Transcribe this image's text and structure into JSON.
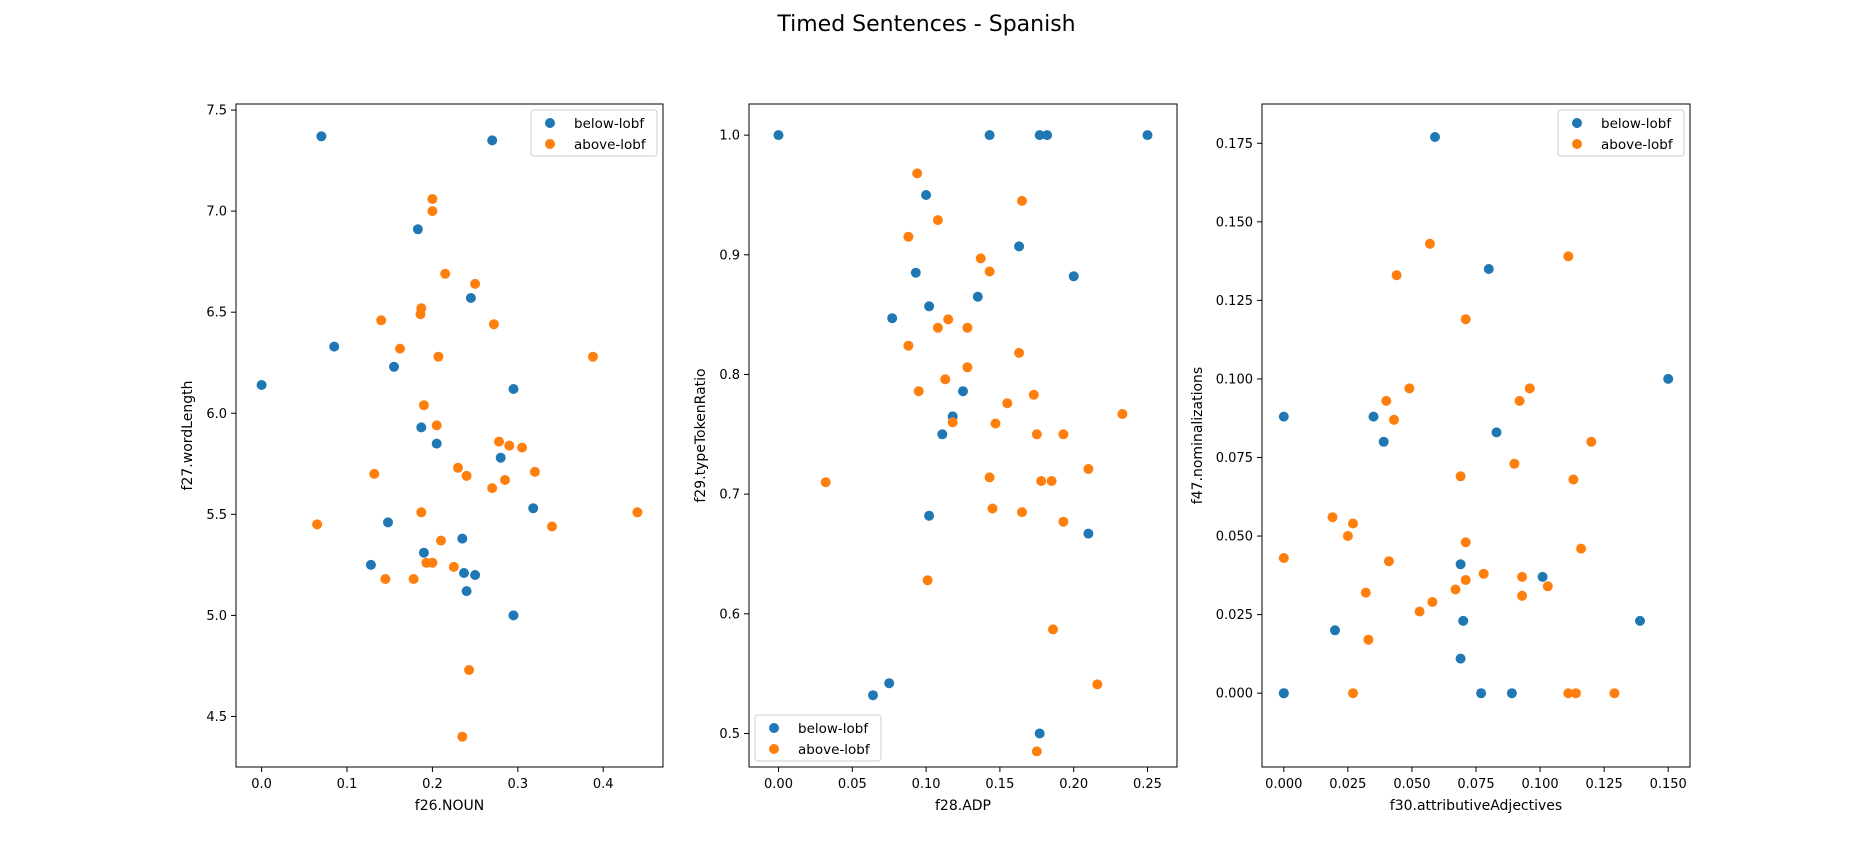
{
  "figure": {
    "title": "Timed Sentences - Spanish"
  },
  "colors": {
    "below": "#1f77b4",
    "above": "#ff7f0e"
  },
  "chart_data": [
    {
      "type": "scatter",
      "xlabel": "f26.NOUN",
      "ylabel": "f27.wordLength",
      "xlim": [
        -0.03,
        0.47
      ],
      "ylim": [
        4.25,
        7.53
      ],
      "xticks": [
        0.0,
        0.1,
        0.2,
        0.3,
        0.4
      ],
      "xtick_labels": [
        "0.0",
        "0.1",
        "0.2",
        "0.3",
        "0.4"
      ],
      "yticks": [
        4.5,
        5.0,
        5.5,
        6.0,
        6.5,
        7.0,
        7.5
      ],
      "ytick_labels": [
        "4.5",
        "5.0",
        "5.5",
        "6.0",
        "6.5",
        "7.0",
        "7.5"
      ],
      "legend": "top-right",
      "series": [
        {
          "name": "below-lobf",
          "color": "#1f77b4",
          "points": [
            [
              0.07,
              7.37
            ],
            [
              0.27,
              7.35
            ],
            [
              0.183,
              6.91
            ],
            [
              0.245,
              6.57
            ],
            [
              0.085,
              6.33
            ],
            [
              0.155,
              6.23
            ],
            [
              0.0,
              6.14
            ],
            [
              0.295,
              6.12
            ],
            [
              0.187,
              5.93
            ],
            [
              0.205,
              5.85
            ],
            [
              0.28,
              5.78
            ],
            [
              0.318,
              5.53
            ],
            [
              0.148,
              5.46
            ],
            [
              0.235,
              5.38
            ],
            [
              0.19,
              5.31
            ],
            [
              0.128,
              5.25
            ],
            [
              0.237,
              5.21
            ],
            [
              0.25,
              5.2
            ],
            [
              0.24,
              5.12
            ],
            [
              0.295,
              5.0
            ]
          ]
        },
        {
          "name": "above-lobf",
          "color": "#ff7f0e",
          "points": [
            [
              0.2,
              7.06
            ],
            [
              0.2,
              7.0
            ],
            [
              0.215,
              6.69
            ],
            [
              0.25,
              6.64
            ],
            [
              0.187,
              6.52
            ],
            [
              0.186,
              6.49
            ],
            [
              0.14,
              6.46
            ],
            [
              0.272,
              6.44
            ],
            [
              0.162,
              6.32
            ],
            [
              0.207,
              6.28
            ],
            [
              0.388,
              6.28
            ],
            [
              0.19,
              6.04
            ],
            [
              0.205,
              5.94
            ],
            [
              0.278,
              5.86
            ],
            [
              0.29,
              5.84
            ],
            [
              0.305,
              5.83
            ],
            [
              0.23,
              5.73
            ],
            [
              0.132,
              5.7
            ],
            [
              0.32,
              5.71
            ],
            [
              0.24,
              5.69
            ],
            [
              0.285,
              5.67
            ],
            [
              0.27,
              5.63
            ],
            [
              0.187,
              5.51
            ],
            [
              0.44,
              5.51
            ],
            [
              0.065,
              5.45
            ],
            [
              0.34,
              5.44
            ],
            [
              0.21,
              5.37
            ],
            [
              0.193,
              5.26
            ],
            [
              0.2,
              5.26
            ],
            [
              0.225,
              5.24
            ],
            [
              0.145,
              5.18
            ],
            [
              0.178,
              5.18
            ],
            [
              0.243,
              4.73
            ],
            [
              0.235,
              4.4
            ]
          ]
        }
      ]
    },
    {
      "type": "scatter",
      "xlabel": "f28.ADP",
      "ylabel": "f29.typeTokenRatio",
      "xlim": [
        -0.02,
        0.27
      ],
      "ylim": [
        0.472,
        1.026
      ],
      "xticks": [
        0.0,
        0.05,
        0.1,
        0.15,
        0.2,
        0.25
      ],
      "xtick_labels": [
        "0.00",
        "0.05",
        "0.10",
        "0.15",
        "0.20",
        "0.25"
      ],
      "yticks": [
        0.5,
        0.6,
        0.7,
        0.8,
        0.9,
        1.0
      ],
      "ytick_labels": [
        "0.5",
        "0.6",
        "0.7",
        "0.8",
        "0.9",
        "1.0"
      ],
      "legend": "bottom-left",
      "series": [
        {
          "name": "below-lobf",
          "color": "#1f77b4",
          "points": [
            [
              0.0,
              1.0
            ],
            [
              0.143,
              1.0
            ],
            [
              0.177,
              1.0
            ],
            [
              0.182,
              1.0
            ],
            [
              0.25,
              1.0
            ],
            [
              0.1,
              0.95
            ],
            [
              0.163,
              0.907
            ],
            [
              0.093,
              0.885
            ],
            [
              0.2,
              0.882
            ],
            [
              0.135,
              0.865
            ],
            [
              0.102,
              0.857
            ],
            [
              0.077,
              0.847
            ],
            [
              0.125,
              0.786
            ],
            [
              0.118,
              0.765
            ],
            [
              0.111,
              0.75
            ],
            [
              0.102,
              0.682
            ],
            [
              0.21,
              0.667
            ],
            [
              0.075,
              0.542
            ],
            [
              0.064,
              0.532
            ],
            [
              0.177,
              0.5
            ]
          ]
        },
        {
          "name": "above-lobf",
          "color": "#ff7f0e",
          "points": [
            [
              0.094,
              0.968
            ],
            [
              0.165,
              0.945
            ],
            [
              0.108,
              0.929
            ],
            [
              0.088,
              0.915
            ],
            [
              0.137,
              0.897
            ],
            [
              0.143,
              0.886
            ],
            [
              0.115,
              0.846
            ],
            [
              0.108,
              0.839
            ],
            [
              0.128,
              0.839
            ],
            [
              0.088,
              0.824
            ],
            [
              0.163,
              0.818
            ],
            [
              0.128,
              0.806
            ],
            [
              0.113,
              0.796
            ],
            [
              0.095,
              0.786
            ],
            [
              0.173,
              0.783
            ],
            [
              0.155,
              0.776
            ],
            [
              0.233,
              0.767
            ],
            [
              0.118,
              0.76
            ],
            [
              0.147,
              0.759
            ],
            [
              0.175,
              0.75
            ],
            [
              0.193,
              0.75
            ],
            [
              0.21,
              0.721
            ],
            [
              0.143,
              0.714
            ],
            [
              0.178,
              0.711
            ],
            [
              0.185,
              0.711
            ],
            [
              0.032,
              0.71
            ],
            [
              0.145,
              0.688
            ],
            [
              0.165,
              0.685
            ],
            [
              0.193,
              0.677
            ],
            [
              0.101,
              0.628
            ],
            [
              0.186,
              0.587
            ],
            [
              0.216,
              0.541
            ],
            [
              0.175,
              0.485
            ]
          ]
        }
      ]
    },
    {
      "type": "scatter",
      "xlabel": "f30.attributiveAdjectives",
      "ylabel": "f47.nominalizations",
      "xlim": [
        -0.0085,
        0.1585
      ],
      "ylim": [
        -0.0235,
        0.1875
      ],
      "xticks": [
        0.0,
        0.025,
        0.05,
        0.075,
        0.1,
        0.125,
        0.15
      ],
      "xtick_labels": [
        "0.000",
        "0.025",
        "0.050",
        "0.075",
        "0.100",
        "0.125",
        "0.150"
      ],
      "yticks": [
        0.0,
        0.025,
        0.05,
        0.075,
        0.1,
        0.125,
        0.15,
        0.175
      ],
      "ytick_labels": [
        "0.000",
        "0.025",
        "0.050",
        "0.075",
        "0.100",
        "0.125",
        "0.150",
        "0.175"
      ],
      "legend": "top-right",
      "series": [
        {
          "name": "below-lobf",
          "color": "#1f77b4",
          "points": [
            [
              0.059,
              0.177
            ],
            [
              0.08,
              0.135
            ],
            [
              0.15,
              0.1
            ],
            [
              0.0,
              0.088
            ],
            [
              0.035,
              0.088
            ],
            [
              0.083,
              0.083
            ],
            [
              0.039,
              0.08
            ],
            [
              0.069,
              0.041
            ],
            [
              0.101,
              0.037
            ],
            [
              0.07,
              0.023
            ],
            [
              0.139,
              0.023
            ],
            [
              0.02,
              0.02
            ],
            [
              0.069,
              0.011
            ],
            [
              0.0,
              0.0
            ],
            [
              0.0,
              0.0
            ],
            [
              0.077,
              0.0
            ],
            [
              0.089,
              0.0
            ]
          ]
        },
        {
          "name": "above-lobf",
          "color": "#ff7f0e",
          "points": [
            [
              0.057,
              0.143
            ],
            [
              0.111,
              0.139
            ],
            [
              0.044,
              0.133
            ],
            [
              0.071,
              0.119
            ],
            [
              0.096,
              0.097
            ],
            [
              0.049,
              0.097
            ],
            [
              0.04,
              0.093
            ],
            [
              0.092,
              0.093
            ],
            [
              0.043,
              0.087
            ],
            [
              0.12,
              0.08
            ],
            [
              0.09,
              0.073
            ],
            [
              0.069,
              0.069
            ],
            [
              0.113,
              0.068
            ],
            [
              0.0,
              0.043
            ],
            [
              0.019,
              0.056
            ],
            [
              0.027,
              0.054
            ],
            [
              0.025,
              0.05
            ],
            [
              0.071,
              0.048
            ],
            [
              0.116,
              0.046
            ],
            [
              0.041,
              0.042
            ],
            [
              0.078,
              0.038
            ],
            [
              0.093,
              0.037
            ],
            [
              0.071,
              0.036
            ],
            [
              0.103,
              0.034
            ],
            [
              0.067,
              0.033
            ],
            [
              0.032,
              0.032
            ],
            [
              0.093,
              0.031
            ],
            [
              0.058,
              0.029
            ],
            [
              0.053,
              0.026
            ],
            [
              0.033,
              0.017
            ],
            [
              0.027,
              0.0
            ],
            [
              0.111,
              0.0
            ],
            [
              0.114,
              0.0
            ],
            [
              0.129,
              0.0
            ]
          ]
        }
      ]
    }
  ]
}
